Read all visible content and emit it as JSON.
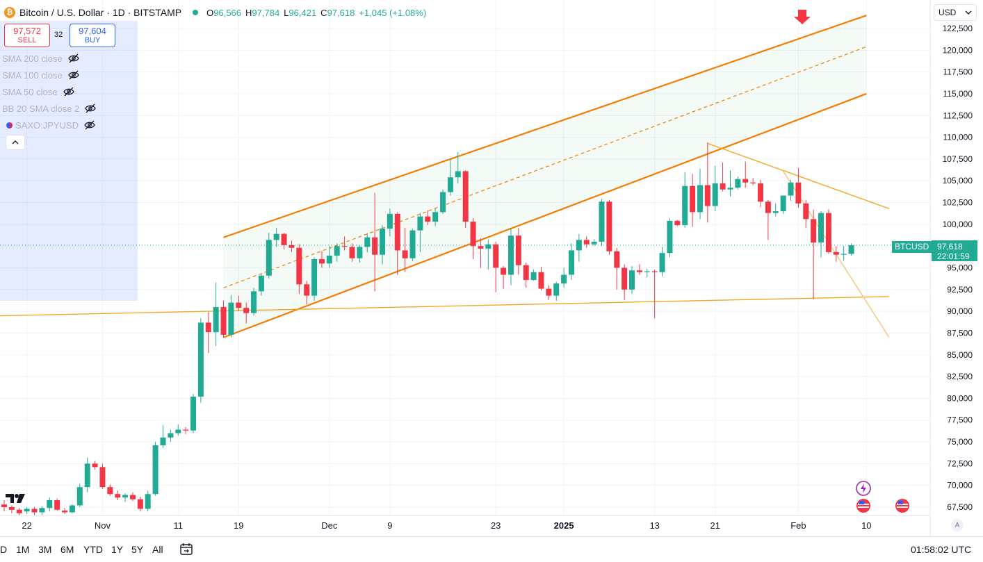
{
  "header": {
    "symbol_title": "Bitcoin / U.S. Dollar · 1D · BITSTAMP",
    "coin_glyph": "₿",
    "ohlc": [
      {
        "key": "O",
        "value": "96,566"
      },
      {
        "key": "H",
        "value": "97,784"
      },
      {
        "key": "L",
        "value": "96,421"
      },
      {
        "key": "C",
        "value": "97,618"
      }
    ],
    "change": "+1,045 (+1.08%)"
  },
  "trade": {
    "sell_price": "97,572",
    "sell_label": "SELL",
    "spread": "32",
    "buy_price": "97,604",
    "buy_label": "BUY"
  },
  "indicators": [
    {
      "label": "SMA 200 close"
    },
    {
      "label": "SMA 100 close"
    },
    {
      "label": "SMA 50 close"
    },
    {
      "label": "BB 20 SMA close 2"
    },
    {
      "label": "SAXO:JPYUSD"
    }
  ],
  "currency": "USD",
  "ticker_label": "BTCUSD",
  "last_price": "97,618",
  "countdown": "22:01:59",
  "auto_label": "A",
  "time_ranges": [
    "D",
    "1M",
    "3M",
    "6M",
    "YTD",
    "1Y",
    "5Y",
    "All"
  ],
  "clock": "01:58:02 UTC",
  "colors": {
    "up": "#22ab94",
    "down": "#f23645",
    "channel": "#f57c00",
    "trend": "#f5a623",
    "accent": "#2962ff"
  },
  "chart_data": {
    "type": "candlestick",
    "title": "Bitcoin / U.S. Dollar · 1D · BITSTAMP",
    "ylim": [
      66000,
      124000
    ],
    "y_ticks": [
      122500,
      120000,
      117500,
      115000,
      112500,
      110000,
      107500,
      105000,
      102500,
      100000,
      97500,
      95000,
      92500,
      90000,
      87500,
      85000,
      82500,
      80000,
      77500,
      75000,
      72500,
      70000,
      67500
    ],
    "y_tick_labels": [
      "122,500",
      "120,000",
      "117,500",
      "115,000",
      "112,500",
      "110,000",
      "107,500",
      "105,000",
      "102,500",
      "100,000",
      "97,500",
      "95,000",
      "92,500",
      "90,000",
      "87,500",
      "85,000",
      "82,500",
      "80,000",
      "77,500",
      "75,000",
      "72,500",
      "70,000",
      "67,500"
    ],
    "x_ticks": [
      {
        "date": "2024-10-22",
        "label": "22",
        "bold": false
      },
      {
        "date": "2024-11-01",
        "label": "Nov",
        "bold": false
      },
      {
        "date": "2024-11-11",
        "label": "11",
        "bold": false
      },
      {
        "date": "2024-11-19",
        "label": "19",
        "bold": false
      },
      {
        "date": "2024-12-01",
        "label": "Dec",
        "bold": false
      },
      {
        "date": "2024-12-09",
        "label": "9",
        "bold": false
      },
      {
        "date": "2024-12-23",
        "label": "23",
        "bold": false
      },
      {
        "date": "2025-01-01",
        "label": "2025",
        "bold": true
      },
      {
        "date": "2025-01-13",
        "label": "13",
        "bold": false
      },
      {
        "date": "2025-01-21",
        "label": "21",
        "bold": false
      },
      {
        "date": "2025-02-01",
        "label": "Feb",
        "bold": false
      },
      {
        "date": "2025-02-10",
        "label": "10",
        "bold": false
      }
    ],
    "start_date": "2024-10-19",
    "last_price_value": 97618,
    "candles": [
      [
        67800,
        68300,
        67000,
        67500
      ],
      [
        67500,
        67700,
        66800,
        67200
      ],
      [
        67200,
        67400,
        66500,
        66800
      ],
      [
        67000,
        67500,
        66700,
        67300
      ],
      [
        67300,
        67500,
        66600,
        66900
      ],
      [
        66900,
        67600,
        66500,
        67400
      ],
      [
        67400,
        68600,
        67000,
        68300
      ],
      [
        68300,
        68500,
        67100,
        67200
      ],
      [
        67100,
        67400,
        66700,
        66900
      ],
      [
        66900,
        67800,
        66800,
        67700
      ],
      [
        67700,
        70200,
        67500,
        69800
      ],
      [
        69800,
        73200,
        69200,
        72500
      ],
      [
        72500,
        72800,
        71800,
        72100
      ],
      [
        72100,
        72500,
        69600,
        69800
      ],
      [
        69800,
        70100,
        68800,
        69000
      ],
      [
        69000,
        69400,
        68300,
        68600
      ],
      [
        68600,
        69100,
        68100,
        68900
      ],
      [
        68900,
        69200,
        68200,
        68400
      ],
      [
        68400,
        68700,
        67000,
        67300
      ],
      [
        67300,
        69400,
        67000,
        69000
      ],
      [
        69000,
        75000,
        68800,
        74600
      ],
      [
        74600,
        76900,
        74300,
        75500
      ],
      [
        75500,
        76400,
        75000,
        76000
      ],
      [
        76000,
        77000,
        75700,
        76400
      ],
      [
        76400,
        76700,
        75900,
        76300
      ],
      [
        76300,
        80500,
        76000,
        80200
      ],
      [
        80200,
        89200,
        79500,
        88700
      ],
      [
        88700,
        89900,
        85200,
        87600
      ],
      [
        87600,
        93300,
        86000,
        90500
      ],
      [
        90500,
        91200,
        87000,
        87300
      ],
      [
        87300,
        91900,
        87000,
        91000
      ],
      [
        91000,
        91800,
        90000,
        90400
      ],
      [
        90400,
        91000,
        88600,
        89800
      ],
      [
        89800,
        92700,
        89500,
        92300
      ],
      [
        92300,
        94300,
        91800,
        94100
      ],
      [
        94100,
        99000,
        93800,
        98200
      ],
      [
        98200,
        99600,
        97400,
        98900
      ],
      [
        98900,
        99000,
        97100,
        97600
      ],
      [
        97600,
        98100,
        96800,
        97300
      ],
      [
        97300,
        97700,
        92000,
        93100
      ],
      [
        93100,
        93500,
        90800,
        91800
      ],
      [
        91800,
        96200,
        91200,
        96000
      ],
      [
        96000,
        96900,
        95000,
        95500
      ],
      [
        95500,
        97500,
        95000,
        96400
      ],
      [
        96400,
        97800,
        95700,
        97500
      ],
      [
        97500,
        98600,
        97000,
        97400
      ],
      [
        97400,
        97800,
        95700,
        96100
      ],
      [
        96100,
        97600,
        95600,
        97400
      ],
      [
        97400,
        99000,
        96800,
        98500
      ],
      [
        98500,
        103600,
        92300,
        96500
      ],
      [
        96500,
        99900,
        95400,
        99500
      ],
      [
        99500,
        101800,
        98600,
        101200
      ],
      [
        101200,
        101400,
        94200,
        97000
      ],
      [
        97000,
        99600,
        94500,
        96100
      ],
      [
        96100,
        99500,
        95800,
        99300
      ],
      [
        99300,
        101300,
        96800,
        100900
      ],
      [
        100900,
        101600,
        99900,
        100300
      ],
      [
        100300,
        101800,
        99800,
        101400
      ],
      [
        101400,
        104000,
        101200,
        103700
      ],
      [
        103700,
        107500,
        103300,
        105400
      ],
      [
        105400,
        108300,
        104700,
        106100
      ],
      [
        106100,
        106200,
        99600,
        100300
      ],
      [
        100300,
        100700,
        96000,
        97500
      ],
      [
        97500,
        98400,
        95000,
        97200
      ],
      [
        97200,
        98200,
        94800,
        97700
      ],
      [
        97700,
        98000,
        92200,
        95000
      ],
      [
        95000,
        95200,
        92600,
        94200
      ],
      [
        94200,
        99600,
        93000,
        98700
      ],
      [
        98700,
        99600,
        94200,
        95300
      ],
      [
        95300,
        95600,
        92700,
        93600
      ],
      [
        93600,
        94800,
        93500,
        94500
      ],
      [
        94500,
        95100,
        92400,
        92600
      ],
      [
        92600,
        93000,
        91300,
        91800
      ],
      [
        91800,
        93400,
        91200,
        93200
      ],
      [
        93200,
        95000,
        92700,
        94200
      ],
      [
        94200,
        97800,
        93600,
        97000
      ],
      [
        97000,
        98900,
        95700,
        98200
      ],
      [
        98200,
        98600,
        97300,
        97700
      ],
      [
        97700,
        98300,
        97500,
        98000
      ],
      [
        98000,
        102900,
        97500,
        102600
      ],
      [
        102600,
        102800,
        96500,
        96900
      ],
      [
        96900,
        97300,
        92500,
        95000
      ],
      [
        95000,
        95400,
        91300,
        92500
      ],
      [
        92500,
        95200,
        92000,
        94700
      ],
      [
        94700,
        95400,
        94200,
        94500
      ],
      [
        94500,
        94900,
        93900,
        94600
      ],
      [
        94600,
        94800,
        89200,
        94500
      ],
      [
        94500,
        97400,
        94000,
        96700
      ],
      [
        96700,
        100700,
        96200,
        100400
      ],
      [
        100400,
        100500,
        99800,
        99900
      ],
      [
        99900,
        106000,
        99600,
        104400
      ],
      [
        104400,
        105800,
        99700,
        101400
      ],
      [
        101400,
        106400,
        100600,
        104500
      ],
      [
        104500,
        109400,
        100200,
        102100
      ],
      [
        102100,
        106700,
        101500,
        104700
      ],
      [
        104700,
        107100,
        103800,
        104000
      ],
      [
        104000,
        106200,
        103200,
        104200
      ],
      [
        104200,
        105500,
        104000,
        105200
      ],
      [
        105200,
        107200,
        104200,
        104800
      ],
      [
        104800,
        105300,
        104500,
        104700
      ],
      [
        104700,
        105100,
        102000,
        102600
      ],
      [
        102600,
        102800,
        98200,
        101300
      ],
      [
        101300,
        102400,
        100900,
        101500
      ],
      [
        101500,
        103300,
        101200,
        103300
      ],
      [
        103300,
        105100,
        102700,
        104800
      ],
      [
        104800,
        106500,
        101900,
        102400
      ],
      [
        102400,
        102800,
        99600,
        100600
      ],
      [
        100600,
        101700,
        91400,
        97900
      ],
      [
        97900,
        101500,
        96200,
        101300
      ],
      [
        101300,
        101700,
        96600,
        96800
      ],
      [
        96800,
        97500,
        95700,
        96500
      ],
      [
        96500,
        97500,
        95800,
        96600
      ],
      [
        96600,
        97800,
        96400,
        97600
      ]
    ],
    "trendlines": [
      {
        "name": "channel_upper",
        "x1": "2024-11-17",
        "y1": 98500,
        "x2": "2025-02-10",
        "y2": 124000
      },
      {
        "name": "channel_middle",
        "x1": "2024-11-17",
        "y1": 92700,
        "x2": "2025-02-10",
        "y2": 120400
      },
      {
        "name": "channel_lower",
        "x1": "2024-11-17",
        "y1": 87000,
        "x2": "2025-02-10",
        "y2": 115000
      },
      {
        "name": "horizontal_support",
        "x1": "2024-10-14",
        "y1": 89400,
        "x2": "2025-02-13",
        "y2": 91700
      },
      {
        "name": "descending_resistance",
        "x1": "2025-01-20",
        "y1": 109300,
        "x2": "2025-02-13",
        "y2": 101800
      },
      {
        "name": "steep_descending",
        "x1": "2025-01-30",
        "y1": 106100,
        "x2": "2025-02-13",
        "y2": 87000
      }
    ]
  }
}
